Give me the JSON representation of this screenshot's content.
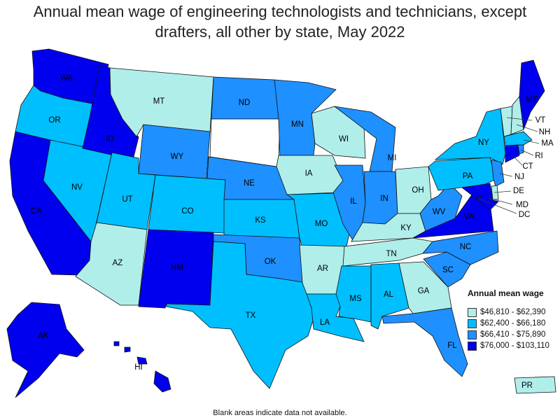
{
  "title_lines": [
    "Annual mean wage of engineering technologists and technicians, except",
    "drafters, all other by state, May 2022"
  ],
  "legend": {
    "title": "Annual mean wage",
    "bins": [
      {
        "label": "$46,810 - $62,390",
        "color": "#b0eeea"
      },
      {
        "label": "$62,400 - $66,180",
        "color": "#00bfff"
      },
      {
        "label": "$66,410 - $75,890",
        "color": "#1e90ff"
      },
      {
        "label": "$76,000 - $103,110",
        "color": "#0000ee"
      }
    ]
  },
  "no_data_color": "#ffffff",
  "footnote": "Blank areas indicate data not available.",
  "states": {
    "WA": {
      "label": "WA",
      "bin": 3
    },
    "OR": {
      "label": "OR",
      "bin": 1
    },
    "CA": {
      "label": "CA",
      "bin": 3
    },
    "NV": {
      "label": "NV",
      "bin": 1
    },
    "ID": {
      "label": "ID",
      "bin": 3
    },
    "MT": {
      "label": "MT",
      "bin": 0
    },
    "WY": {
      "label": "WY",
      "bin": 2
    },
    "UT": {
      "label": "UT",
      "bin": 1
    },
    "AZ": {
      "label": "AZ",
      "bin": 0
    },
    "CO": {
      "label": "CO",
      "bin": 1
    },
    "NM": {
      "label": "NM",
      "bin": 3
    },
    "ND": {
      "label": "ND",
      "bin": 2
    },
    "SD": {
      "label": "",
      "bin": -1
    },
    "NE": {
      "label": "NE",
      "bin": 2
    },
    "KS": {
      "label": "KS",
      "bin": 1
    },
    "OK": {
      "label": "OK",
      "bin": 2
    },
    "TX": {
      "label": "TX",
      "bin": 1
    },
    "MN": {
      "label": "MN",
      "bin": 2
    },
    "IA": {
      "label": "IA",
      "bin": 0
    },
    "MO": {
      "label": "MO",
      "bin": 1
    },
    "AR": {
      "label": "AR",
      "bin": 0
    },
    "LA": {
      "label": "LA",
      "bin": 1
    },
    "WI": {
      "label": "WI",
      "bin": 0
    },
    "IL": {
      "label": "IL",
      "bin": 2
    },
    "MI": {
      "label": "MI",
      "bin": 2
    },
    "IN": {
      "label": "IN",
      "bin": 2
    },
    "OH": {
      "label": "OH",
      "bin": 0
    },
    "KY": {
      "label": "KY",
      "bin": 0
    },
    "TN": {
      "label": "TN",
      "bin": 0
    },
    "MS": {
      "label": "MS",
      "bin": 1
    },
    "AL": {
      "label": "AL",
      "bin": 1
    },
    "GA": {
      "label": "GA",
      "bin": 0
    },
    "FL": {
      "label": "FL",
      "bin": 2
    },
    "SC": {
      "label": "SC",
      "bin": 2
    },
    "NC": {
      "label": "NC",
      "bin": 2
    },
    "VA": {
      "label": "VA",
      "bin": 3
    },
    "WV": {
      "label": "WV",
      "bin": 2
    },
    "PA": {
      "label": "PA",
      "bin": 1
    },
    "NY": {
      "label": "NY",
      "bin": 1
    },
    "VT": {
      "label": "VT",
      "bin": 0
    },
    "NH": {
      "label": "NH",
      "bin": 0
    },
    "ME": {
      "label": "ME",
      "bin": 3
    },
    "MA": {
      "label": "MA",
      "bin": 1
    },
    "RI": {
      "label": "RI",
      "bin": 2
    },
    "CT": {
      "label": "CT",
      "bin": 3
    },
    "NJ": {
      "label": "NJ",
      "bin": 2
    },
    "DE": {
      "label": "DE",
      "bin": 0
    },
    "MD": {
      "label": "MD",
      "bin": 3
    },
    "DC": {
      "label": "DC",
      "bin": 3
    },
    "AK": {
      "label": "AK",
      "bin": 3
    },
    "HI": {
      "label": "HI",
      "bin": 3
    },
    "PR": {
      "label": "PR",
      "bin": 0
    }
  }
}
